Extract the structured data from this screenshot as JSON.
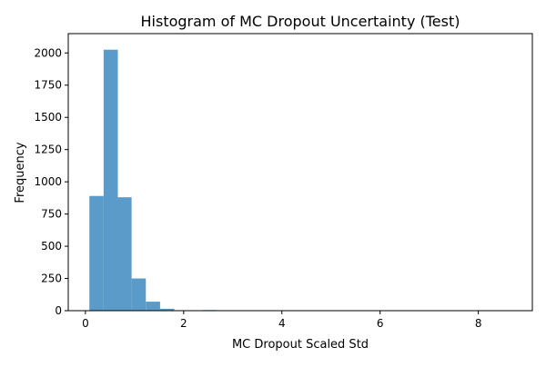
{
  "chart_data": {
    "type": "bar",
    "title": "Histogram of MC Dropout Uncertainty (Test)",
    "xlabel": "MC Dropout Scaled Std",
    "ylabel": "Frequency",
    "xlim": [
      -0.35,
      9.1
    ],
    "ylim": [
      0,
      2150
    ],
    "xticks": [
      0,
      2,
      4,
      6,
      8
    ],
    "yticks": [
      0,
      250,
      500,
      750,
      1000,
      1250,
      1500,
      1750,
      2000
    ],
    "grid": false,
    "legend": "none",
    "bar_color": "#5b9bc9",
    "bin_edges": [
      0.08,
      0.37,
      0.66,
      0.94,
      1.23,
      1.52,
      1.81,
      2.1,
      2.38,
      2.67,
      2.96,
      3.25,
      3.54,
      3.83,
      4.11,
      4.4,
      4.69,
      4.98,
      5.27,
      5.55,
      5.84,
      6.13,
      6.42,
      6.71,
      7.0,
      7.28,
      7.57,
      7.86,
      8.15,
      8.44,
      8.72
    ],
    "values": [
      890,
      2025,
      880,
      250,
      70,
      15,
      2,
      0,
      5,
      1,
      0,
      0,
      0,
      0,
      0,
      0,
      0,
      0,
      0,
      0,
      0,
      0,
      0,
      0,
      0,
      0,
      0,
      0,
      0,
      1
    ]
  }
}
